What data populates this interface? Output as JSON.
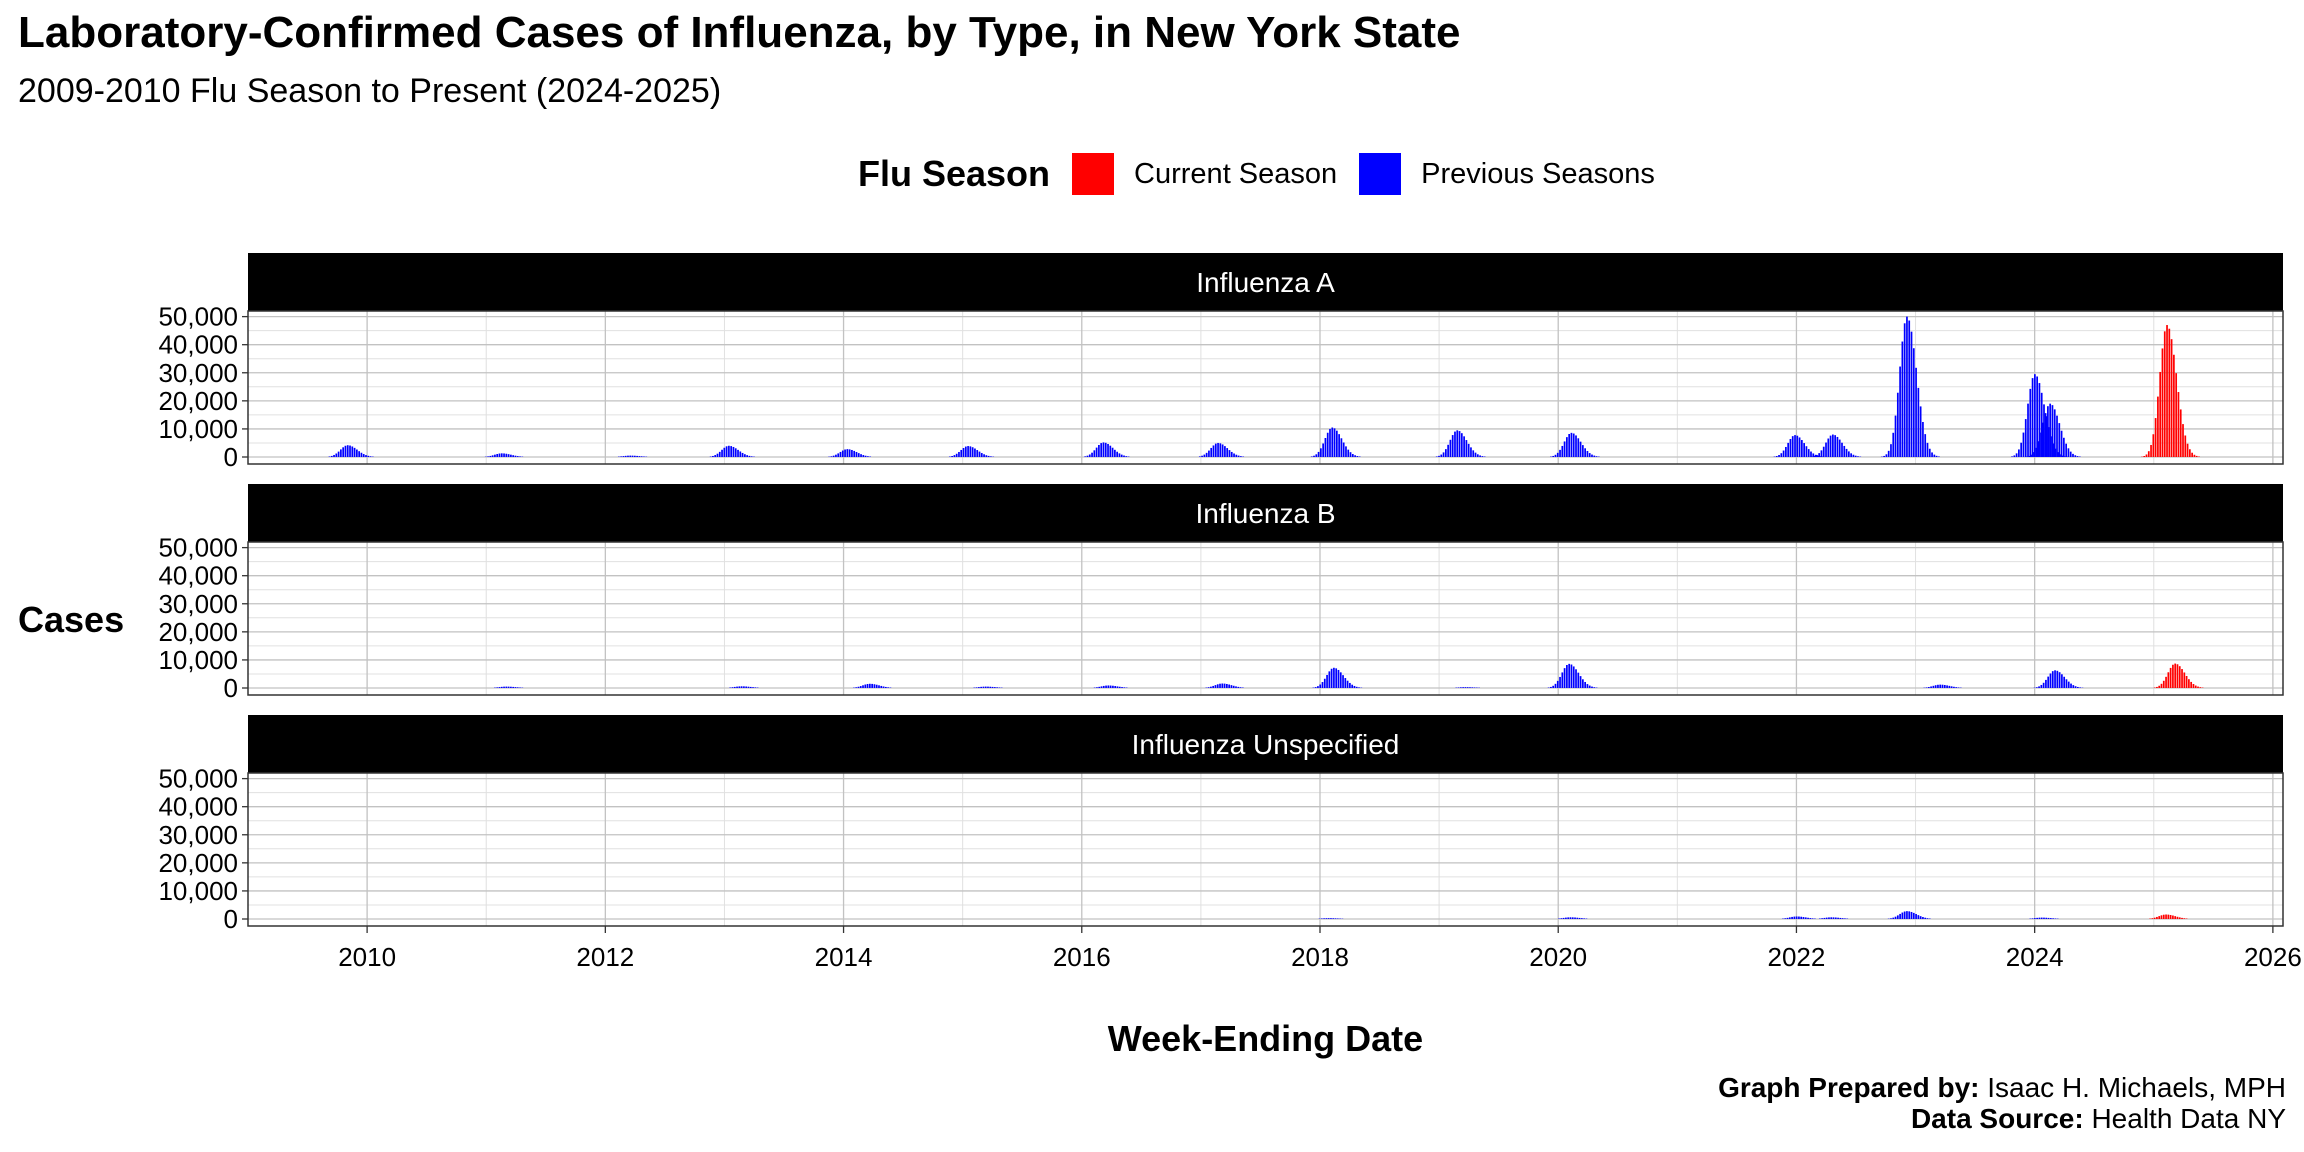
{
  "title": "Laboratory-Confirmed Cases of Influenza, by Type, in New York State",
  "subtitle": "2009-2010 Flu Season to Present (2024-2025)",
  "legend": {
    "title": "Flu Season",
    "items": [
      {
        "label": "Current Season",
        "color": "#ff0000"
      },
      {
        "label": "Previous Seasons",
        "color": "#0000ff"
      }
    ]
  },
  "footer": {
    "prepared_label": "Graph Prepared by:",
    "prepared_value": "Isaac H. Michaels, MPH",
    "source_label": "Data Source:",
    "source_value": "Health Data NY"
  },
  "chart_data": {
    "type": "bar",
    "title": "Laboratory-Confirmed Cases of Influenza, by Type, in New York State",
    "subtitle": "2009-2010 Flu Season to Present (2024-2025)",
    "xlabel": "Week-Ending Date",
    "ylabel": "Cases",
    "x_range": [
      "2009-01-01",
      "2026-02-01"
    ],
    "x_ticks": [
      "2010",
      "2012",
      "2014",
      "2016",
      "2018",
      "2020",
      "2022",
      "2024",
      "2026"
    ],
    "ylim": [
      0,
      52000
    ],
    "y_ticks": [
      "0",
      "10,000",
      "20,000",
      "30,000",
      "40,000",
      "50,000"
    ],
    "grid": true,
    "legend_position": "top",
    "colors": {
      "current": "#ff0000",
      "previous": "#0000ff",
      "strip": "#000000"
    },
    "facets": [
      {
        "name": "Influenza A",
        "seasons": [
          {
            "peak_date": "2009-10-31",
            "peak": 4200,
            "current": false
          },
          {
            "peak_date": "2011-02-15",
            "peak": 1300,
            "current": false
          },
          {
            "peak_date": "2012-03-15",
            "peak": 500,
            "current": false
          },
          {
            "peak_date": "2013-01-12",
            "peak": 4000,
            "current": false
          },
          {
            "peak_date": "2014-01-10",
            "peak": 2800,
            "current": false
          },
          {
            "peak_date": "2015-01-15",
            "peak": 3900,
            "current": false
          },
          {
            "peak_date": "2016-03-05",
            "peak": 5200,
            "current": false
          },
          {
            "peak_date": "2017-02-20",
            "peak": 5000,
            "current": false
          },
          {
            "peak_date": "2018-02-05",
            "peak": 10500,
            "current": false
          },
          {
            "peak_date": "2019-02-23",
            "peak": 9500,
            "current": false
          },
          {
            "peak_date": "2020-02-08",
            "peak": 8600,
            "current": false
          },
          {
            "peak_date": "2021-12-25",
            "peak": 7800,
            "current": false
          },
          {
            "peak_date": "2022-04-20",
            "peak": 8000,
            "current": false
          },
          {
            "peak_date": "2022-12-03",
            "peak": 50000,
            "current": false
          },
          {
            "peak_date": "2023-12-30",
            "peak": 29500,
            "current": false
          },
          {
            "peak_date": "2024-02-15",
            "peak": 19000,
            "current": false
          },
          {
            "peak_date": "2025-02-08",
            "peak": 47000,
            "current": true
          }
        ]
      },
      {
        "name": "Influenza B",
        "seasons": [
          {
            "peak_date": "2011-03-01",
            "peak": 500,
            "current": false
          },
          {
            "peak_date": "2013-02-20",
            "peak": 600,
            "current": false
          },
          {
            "peak_date": "2014-03-20",
            "peak": 1500,
            "current": false
          },
          {
            "peak_date": "2015-03-10",
            "peak": 500,
            "current": false
          },
          {
            "peak_date": "2016-03-20",
            "peak": 900,
            "current": false
          },
          {
            "peak_date": "2017-03-05",
            "peak": 1600,
            "current": false
          },
          {
            "peak_date": "2018-02-10",
            "peak": 7200,
            "current": false
          },
          {
            "peak_date": "2019-03-20",
            "peak": 300,
            "current": false
          },
          {
            "peak_date": "2020-02-01",
            "peak": 8600,
            "current": false
          },
          {
            "peak_date": "2023-03-15",
            "peak": 1200,
            "current": false
          },
          {
            "peak_date": "2024-03-01",
            "peak": 6300,
            "current": false
          },
          {
            "peak_date": "2025-03-05",
            "peak": 8700,
            "current": true
          }
        ]
      },
      {
        "name": "Influenza Unspecified",
        "seasons": [
          {
            "peak_date": "2018-01-25",
            "peak": 300,
            "current": false
          },
          {
            "peak_date": "2020-02-05",
            "peak": 600,
            "current": false
          },
          {
            "peak_date": "2021-12-30",
            "peak": 900,
            "current": false
          },
          {
            "peak_date": "2022-04-15",
            "peak": 600,
            "current": false
          },
          {
            "peak_date": "2022-12-03",
            "peak": 2800,
            "current": false
          },
          {
            "peak_date": "2024-01-20",
            "peak": 500,
            "current": false
          },
          {
            "peak_date": "2025-02-05",
            "peak": 1600,
            "current": true
          }
        ]
      }
    ]
  }
}
